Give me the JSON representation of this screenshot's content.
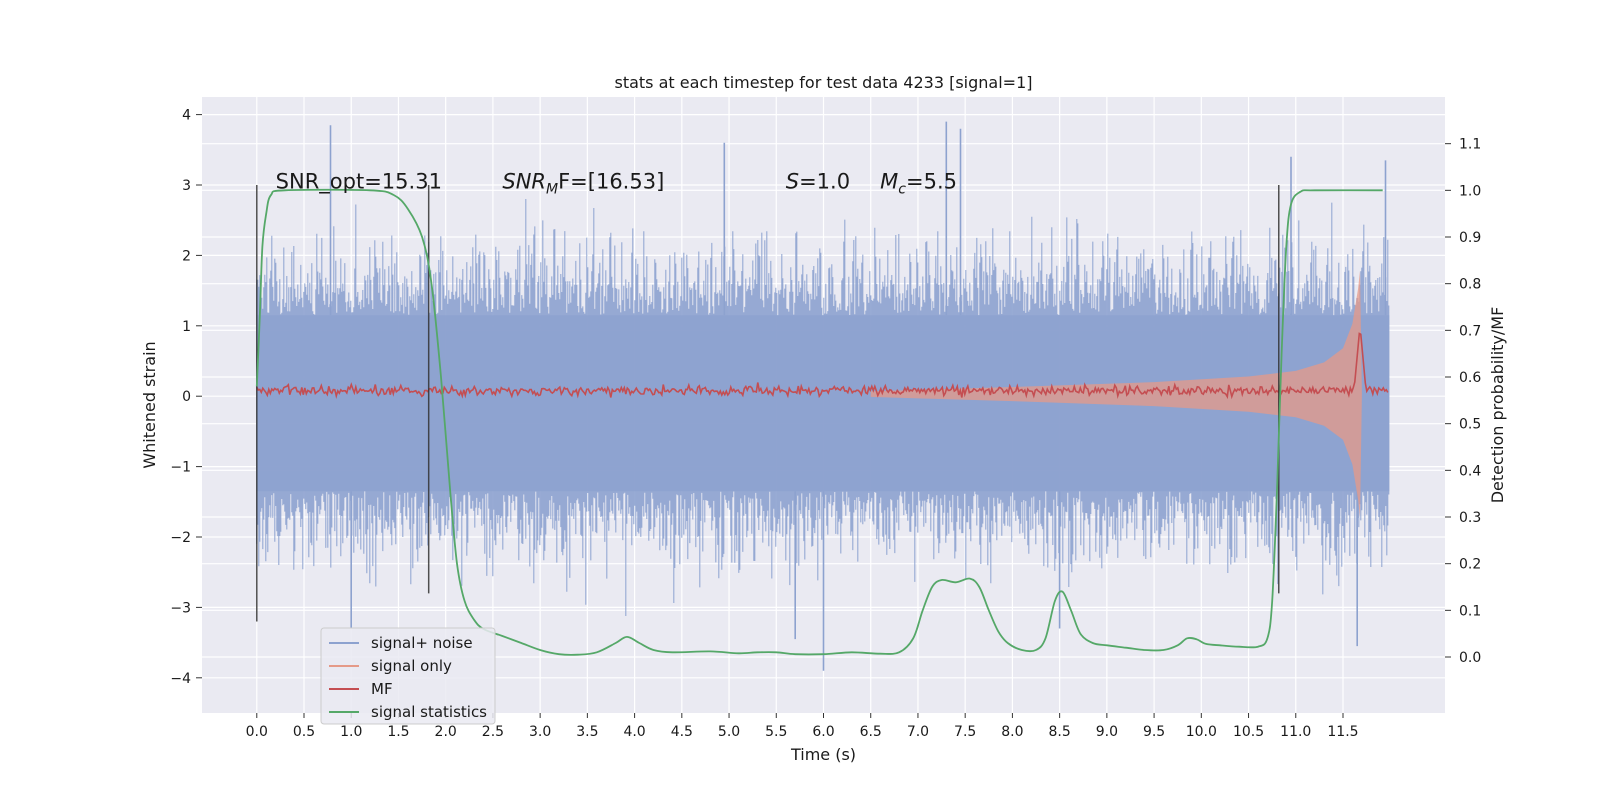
{
  "chart_data": {
    "type": "line",
    "title": "stats at each timestep for test data 4233 [signal=1]",
    "xlabel": "Time (s)",
    "ylabel_left": "Whitened strain",
    "ylabel_right": "Detection probability/MF",
    "xlim": [
      -0.58,
      12.58
    ],
    "ylim_left": [
      -4.5,
      4.25
    ],
    "ylim_right": [
      -0.12,
      1.2
    ],
    "grid": true,
    "legend_position": "lower-left",
    "x_ticks": [
      "0.0",
      "0.5",
      "1.0",
      "1.5",
      "2.0",
      "2.5",
      "3.0",
      "3.5",
      "4.0",
      "4.5",
      "5.0",
      "5.5",
      "6.0",
      "6.5",
      "7.0",
      "7.5",
      "8.0",
      "8.5",
      "9.0",
      "9.5",
      "10.0",
      "10.5",
      "11.0",
      "11.5"
    ],
    "y_left_ticks": [
      "4",
      "3",
      "2",
      "1",
      "0",
      "−1",
      "−2",
      "−3",
      "−4"
    ],
    "y_right_ticks": [
      "1.1",
      "1.0",
      "0.9",
      "0.8",
      "0.7",
      "0.6",
      "0.5",
      "0.4",
      "0.3",
      "0.2",
      "0.1",
      "0.0"
    ],
    "annotations": [
      {
        "text": "SNR_opt=15.31",
        "x": 0.2,
        "y": 3.05
      },
      {
        "base": "SNR",
        "sub": "M",
        "rest": "F=[16.53]",
        "x": 2.6,
        "y": 3.05
      },
      {
        "base": "S",
        "rest": "=1.0",
        "x": 5.6,
        "y": 3.05
      },
      {
        "base": "M",
        "sub": "c",
        "rest": "=5.5",
        "x": 6.6,
        "y": 3.05
      }
    ],
    "vertical_lines": [
      {
        "x": 0.0,
        "y_range": [
          -3.2,
          3.0
        ]
      },
      {
        "x": 1.82,
        "y_range": [
          -2.8,
          3.0
        ]
      },
      {
        "x": 10.82,
        "y_range": [
          -2.8,
          3.0
        ]
      }
    ],
    "series": [
      {
        "name": "signal+ noise",
        "color": "#8da2cf",
        "axis": "left",
        "x_range": [
          0.0,
          11.99
        ],
        "envelope_dense": [
          1.15,
          -1.35
        ],
        "notable_peaks": [
          {
            "x": 0.78,
            "y": 3.85
          },
          {
            "x": 4.95,
            "y": 3.6
          },
          {
            "x": 7.3,
            "y": 3.9
          },
          {
            "x": 7.45,
            "y": 3.8
          },
          {
            "x": 10.95,
            "y": 3.4
          },
          {
            "x": 11.95,
            "y": 3.35
          },
          {
            "x": 6.0,
            "y": -3.9
          },
          {
            "x": 5.7,
            "y": -3.45
          },
          {
            "x": 11.65,
            "y": -3.55
          },
          {
            "x": 1.0,
            "y": -3.3
          },
          {
            "x": 8.5,
            "y": -3.3
          }
        ]
      },
      {
        "name": "signal only",
        "color": "#e59a88",
        "axis": "left",
        "chirp_envelope": [
          {
            "x": 6.5,
            "amp": 0.04
          },
          {
            "x": 8.0,
            "amp": 0.1
          },
          {
            "x": 9.5,
            "amp": 0.17
          },
          {
            "x": 10.5,
            "amp": 0.25
          },
          {
            "x": 11.0,
            "amp": 0.33
          },
          {
            "x": 11.3,
            "amp": 0.45
          },
          {
            "x": 11.5,
            "amp": 0.65
          },
          {
            "x": 11.6,
            "amp": 1.0
          },
          {
            "x": 11.66,
            "amp": 1.5
          },
          {
            "x": 11.68,
            "amp": 1.75
          },
          {
            "x": 11.7,
            "amp": 0.0
          }
        ]
      },
      {
        "name": "MF",
        "color": "#c44e52",
        "axis": "left",
        "baseline": 0.08,
        "peak": {
          "x": 11.68,
          "y": 1.0
        }
      },
      {
        "name": "signal statistics",
        "color": "#55a868",
        "axis": "right",
        "points": [
          [
            0.0,
            0.58
          ],
          [
            0.03,
            0.72
          ],
          [
            0.06,
            0.88
          ],
          [
            0.1,
            0.95
          ],
          [
            0.15,
            0.99
          ],
          [
            0.3,
            1.0
          ],
          [
            1.2,
            1.0
          ],
          [
            1.45,
            0.99
          ],
          [
            1.6,
            0.96
          ],
          [
            1.75,
            0.9
          ],
          [
            1.85,
            0.8
          ],
          [
            1.95,
            0.6
          ],
          [
            2.05,
            0.35
          ],
          [
            2.12,
            0.2
          ],
          [
            2.2,
            0.12
          ],
          [
            2.3,
            0.08
          ],
          [
            2.4,
            0.06
          ],
          [
            2.6,
            0.045
          ],
          [
            2.8,
            0.03
          ],
          [
            3.0,
            0.015
          ],
          [
            3.2,
            0.006
          ],
          [
            3.4,
            0.005
          ],
          [
            3.6,
            0.01
          ],
          [
            3.8,
            0.03
          ],
          [
            3.92,
            0.043
          ],
          [
            4.05,
            0.03
          ],
          [
            4.2,
            0.015
          ],
          [
            4.4,
            0.01
          ],
          [
            4.8,
            0.012
          ],
          [
            5.1,
            0.008
          ],
          [
            5.3,
            0.01
          ],
          [
            5.5,
            0.01
          ],
          [
            5.7,
            0.006
          ],
          [
            6.0,
            0.006
          ],
          [
            6.3,
            0.01
          ],
          [
            6.6,
            0.007
          ],
          [
            6.8,
            0.01
          ],
          [
            6.95,
            0.04
          ],
          [
            7.05,
            0.1
          ],
          [
            7.15,
            0.15
          ],
          [
            7.25,
            0.165
          ],
          [
            7.4,
            0.16
          ],
          [
            7.55,
            0.168
          ],
          [
            7.65,
            0.15
          ],
          [
            7.75,
            0.1
          ],
          [
            7.85,
            0.055
          ],
          [
            7.95,
            0.03
          ],
          [
            8.1,
            0.015
          ],
          [
            8.25,
            0.015
          ],
          [
            8.35,
            0.04
          ],
          [
            8.45,
            0.12
          ],
          [
            8.53,
            0.14
          ],
          [
            8.62,
            0.1
          ],
          [
            8.72,
            0.05
          ],
          [
            8.85,
            0.03
          ],
          [
            9.0,
            0.025
          ],
          [
            9.2,
            0.02
          ],
          [
            9.4,
            0.015
          ],
          [
            9.6,
            0.015
          ],
          [
            9.75,
            0.025
          ],
          [
            9.85,
            0.04
          ],
          [
            9.95,
            0.038
          ],
          [
            10.05,
            0.028
          ],
          [
            10.2,
            0.025
          ],
          [
            10.4,
            0.022
          ],
          [
            10.6,
            0.022
          ],
          [
            10.7,
            0.04
          ],
          [
            10.75,
            0.12
          ],
          [
            10.8,
            0.35
          ],
          [
            10.85,
            0.65
          ],
          [
            10.9,
            0.88
          ],
          [
            10.95,
            0.97
          ],
          [
            11.05,
            0.997
          ],
          [
            11.2,
            1.0
          ],
          [
            11.92,
            1.0
          ]
        ]
      }
    ]
  }
}
